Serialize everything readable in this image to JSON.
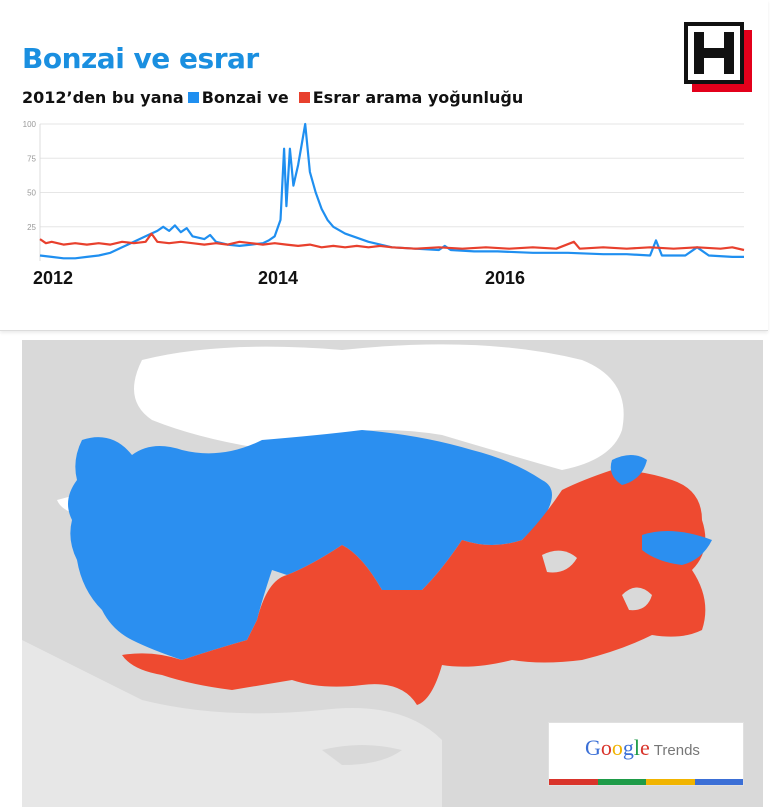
{
  "header": {
    "title": "Bonzai ve esrar",
    "subtitle_prefix": "2012’den bu yana",
    "legend_1": "Bonzai ve",
    "legend_2": "Esrar arama yoğunluğu"
  },
  "colors": {
    "bonzai": "#1f8ff0",
    "esrar": "#e8402d",
    "title": "#1a8fe0",
    "logo_red": "#e3001b"
  },
  "chart_data": {
    "type": "line",
    "title": "Bonzai ve esrar",
    "subtitle": "2012’den bu yana",
    "x_tick_labels": [
      "2012",
      "2014",
      "2016"
    ],
    "y_tick_labels": [
      "100",
      "75",
      "50",
      "25"
    ],
    "xlim": [
      2012.0,
      2018.0
    ],
    "ylim": [
      0,
      100
    ],
    "grid": true,
    "legend_position": "top-left",
    "series": [
      {
        "name": "Bonzai ve",
        "color": "#1f8ff0",
        "points": [
          [
            2012.0,
            4
          ],
          [
            2012.1,
            3
          ],
          [
            2012.2,
            2
          ],
          [
            2012.3,
            2
          ],
          [
            2012.4,
            3
          ],
          [
            2012.5,
            4
          ],
          [
            2012.6,
            6
          ],
          [
            2012.7,
            10
          ],
          [
            2012.8,
            14
          ],
          [
            2012.9,
            18
          ],
          [
            2013.0,
            22
          ],
          [
            2013.05,
            25
          ],
          [
            2013.1,
            22
          ],
          [
            2013.15,
            26
          ],
          [
            2013.2,
            21
          ],
          [
            2013.25,
            24
          ],
          [
            2013.3,
            18
          ],
          [
            2013.4,
            16
          ],
          [
            2013.45,
            19
          ],
          [
            2013.5,
            14
          ],
          [
            2013.6,
            12
          ],
          [
            2013.7,
            11
          ],
          [
            2013.8,
            12
          ],
          [
            2013.9,
            13
          ],
          [
            2013.95,
            15
          ],
          [
            2014.0,
            18
          ],
          [
            2014.05,
            30
          ],
          [
            2014.08,
            82
          ],
          [
            2014.1,
            40
          ],
          [
            2014.13,
            82
          ],
          [
            2014.16,
            55
          ],
          [
            2014.2,
            70
          ],
          [
            2014.23,
            85
          ],
          [
            2014.26,
            100
          ],
          [
            2014.3,
            65
          ],
          [
            2014.35,
            50
          ],
          [
            2014.4,
            38
          ],
          [
            2014.45,
            30
          ],
          [
            2014.5,
            25
          ],
          [
            2014.6,
            20
          ],
          [
            2014.7,
            17
          ],
          [
            2014.8,
            14
          ],
          [
            2014.9,
            12
          ],
          [
            2015.0,
            10
          ],
          [
            2015.2,
            9
          ],
          [
            2015.4,
            8
          ],
          [
            2015.45,
            11
          ],
          [
            2015.5,
            8
          ],
          [
            2015.7,
            7
          ],
          [
            2015.9,
            7
          ],
          [
            2016.2,
            6
          ],
          [
            2016.5,
            6
          ],
          [
            2016.8,
            5
          ],
          [
            2017.0,
            5
          ],
          [
            2017.2,
            4
          ],
          [
            2017.25,
            15
          ],
          [
            2017.3,
            4
          ],
          [
            2017.5,
            4
          ],
          [
            2017.6,
            10
          ],
          [
            2017.7,
            4
          ],
          [
            2017.9,
            3
          ],
          [
            2018.0,
            3
          ]
        ]
      },
      {
        "name": "Esrar arama yoğunluğu",
        "color": "#e8402d",
        "points": [
          [
            2012.0,
            16
          ],
          [
            2012.05,
            13
          ],
          [
            2012.1,
            14
          ],
          [
            2012.2,
            12
          ],
          [
            2012.3,
            13
          ],
          [
            2012.4,
            12
          ],
          [
            2012.5,
            13
          ],
          [
            2012.6,
            12
          ],
          [
            2012.7,
            14
          ],
          [
            2012.8,
            13
          ],
          [
            2012.9,
            14
          ],
          [
            2012.95,
            20
          ],
          [
            2013.0,
            14
          ],
          [
            2013.1,
            13
          ],
          [
            2013.2,
            14
          ],
          [
            2013.3,
            13
          ],
          [
            2013.4,
            12
          ],
          [
            2013.5,
            13
          ],
          [
            2013.6,
            12
          ],
          [
            2013.7,
            14
          ],
          [
            2013.8,
            13
          ],
          [
            2013.9,
            12
          ],
          [
            2014.0,
            13
          ],
          [
            2014.1,
            12
          ],
          [
            2014.2,
            11
          ],
          [
            2014.3,
            12
          ],
          [
            2014.4,
            10
          ],
          [
            2014.5,
            11
          ],
          [
            2014.6,
            10
          ],
          [
            2014.7,
            11
          ],
          [
            2014.8,
            10
          ],
          [
            2014.9,
            11
          ],
          [
            2015.0,
            10
          ],
          [
            2015.2,
            9
          ],
          [
            2015.4,
            10
          ],
          [
            2015.6,
            9
          ],
          [
            2015.8,
            10
          ],
          [
            2016.0,
            9
          ],
          [
            2016.2,
            10
          ],
          [
            2016.4,
            9
          ],
          [
            2016.55,
            14
          ],
          [
            2016.6,
            9
          ],
          [
            2016.8,
            10
          ],
          [
            2017.0,
            9
          ],
          [
            2017.2,
            10
          ],
          [
            2017.4,
            9
          ],
          [
            2017.6,
            10
          ],
          [
            2017.8,
            9
          ],
          [
            2017.9,
            10
          ],
          [
            2018.0,
            8
          ]
        ]
      }
    ]
  },
  "map": {
    "bonzai_color": "#2b8ff0",
    "esrar_color": "#ee4a30",
    "sea_color": "#ffffff",
    "land_color": "#d9d9d9"
  },
  "trends_logo": {
    "google_letters": [
      "G",
      "o",
      "o",
      "g",
      "l",
      "e"
    ],
    "google_colors": [
      "#3b6fd6",
      "#d9342b",
      "#f1b400",
      "#3b6fd6",
      "#1e9b48",
      "#d9342b"
    ],
    "trends_label": "Trends",
    "bar_colors": [
      "#d9342b",
      "#1e9b48",
      "#f1b400",
      "#3b6fd6"
    ]
  }
}
